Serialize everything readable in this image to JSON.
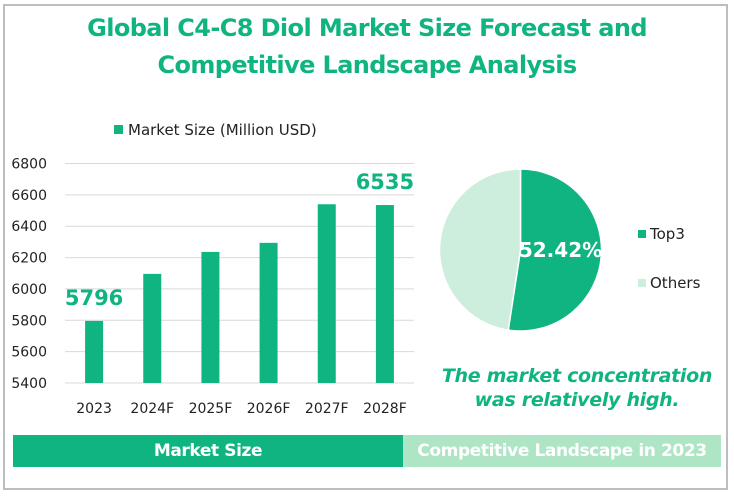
{
  "title": {
    "line1": "Global C4-C8 Diol Market Size Forecast and",
    "line2": "Competitive Landscape Analysis"
  },
  "colors": {
    "primary": "#10b481",
    "pie_others": "#cdeedd",
    "banner_right": "#aee5c4",
    "gridline": "#d9d9d9"
  },
  "chart_data": [
    {
      "type": "bar",
      "title": "",
      "legend": [
        "Market Size (Million USD)"
      ],
      "legend_position": "top",
      "categories": [
        "2023",
        "2024F",
        "2025F",
        "2026F",
        "2027F",
        "2028F"
      ],
      "series": [
        {
          "name": "Market Size (Million USD)",
          "values": [
            5796,
            6096,
            6236,
            6294,
            6540,
            6535
          ]
        }
      ],
      "data_labels": [
        {
          "category": "2023",
          "text": "5796"
        },
        {
          "category": "2028F",
          "text": "6535"
        }
      ],
      "yticks": [
        "5400",
        "5600",
        "5800",
        "6000",
        "6200",
        "6400",
        "6600",
        "6800"
      ],
      "ylim": [
        5400,
        6800
      ],
      "xlabel": "",
      "ylabel": "",
      "grid": true
    },
    {
      "type": "pie",
      "title": "",
      "labels": [
        "Top3",
        "Others"
      ],
      "values": [
        52.42,
        47.58
      ],
      "data_labels": [
        {
          "label": "Top3",
          "text": "52.42%"
        }
      ],
      "legend": [
        "Top3",
        "Others"
      ],
      "legend_position": "right"
    }
  ],
  "note": {
    "line1": "The market concentration",
    "line2": "was relatively high."
  },
  "banners": {
    "left": "Market Size",
    "right": "Competitive Landscape in 2023"
  }
}
